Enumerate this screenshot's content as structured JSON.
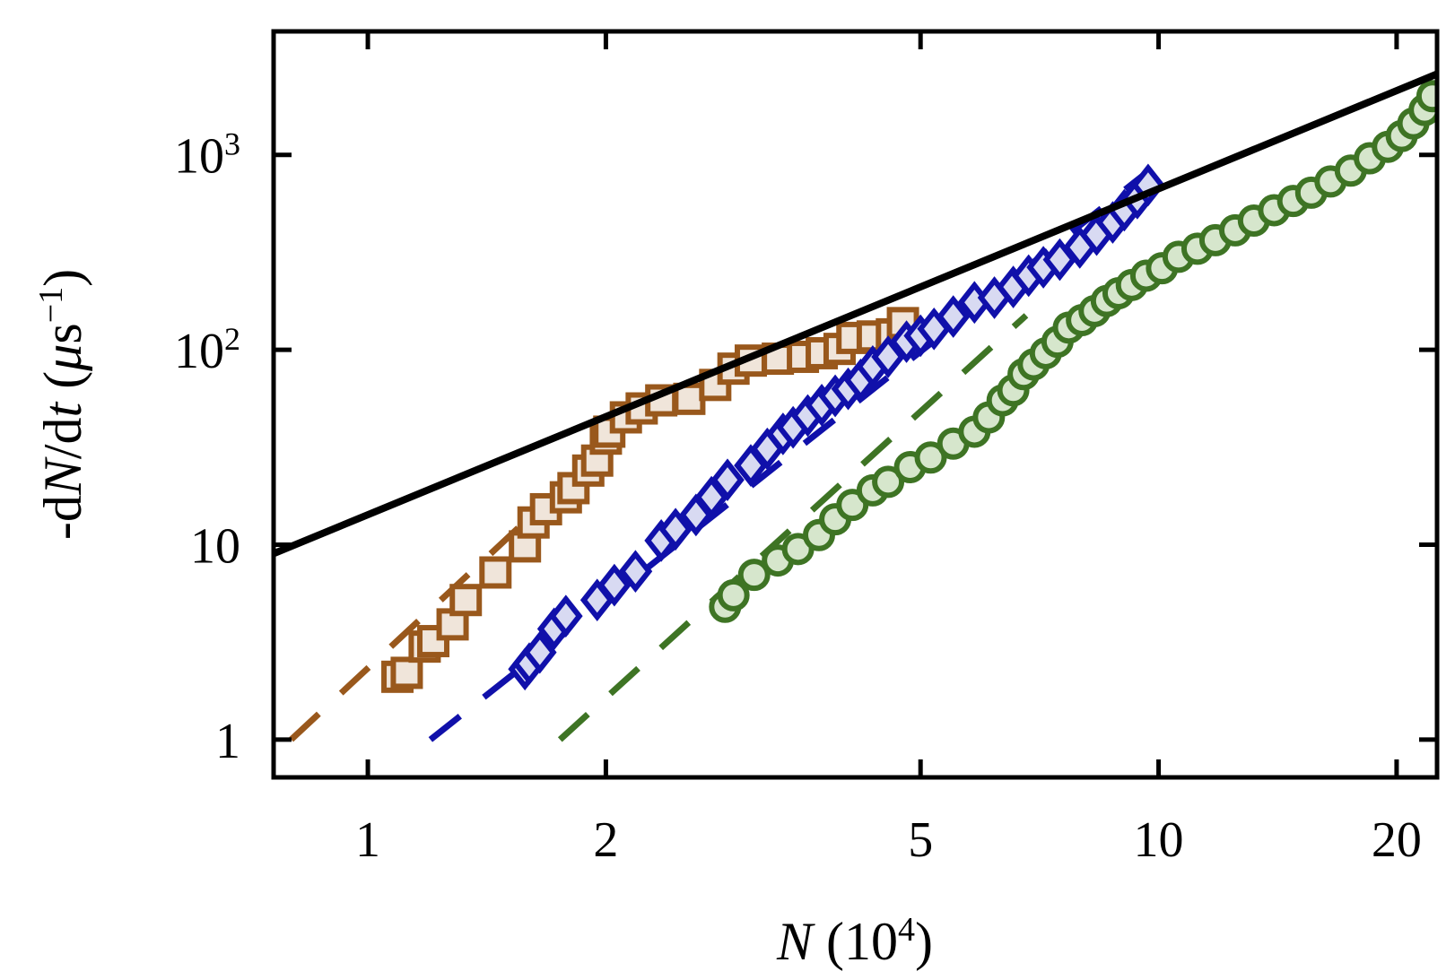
{
  "chart_data": {
    "type": "scatter",
    "xscale": "log",
    "yscale": "log",
    "xlim": [
      0.76,
      22.5
    ],
    "ylim": [
      0.64,
      4300
    ],
    "grid": false,
    "xlabel": {
      "main": "N",
      "rest": "(10",
      "sup": "4",
      "close": ")"
    },
    "ylabel": {
      "prefix": "-d",
      "var1": "N",
      "mid": "/d",
      "var2": "t",
      "space": " (",
      "mu": "μ",
      "unit": "s",
      "sup": "−1",
      "close": ")"
    },
    "xticks": [
      {
        "value": 1,
        "label": "1"
      },
      {
        "value": 2,
        "label": "2"
      },
      {
        "value": 5,
        "label": "5"
      },
      {
        "value": 10,
        "label": "10"
      },
      {
        "value": 20,
        "label": "20"
      }
    ],
    "yticks": [
      {
        "value": 1,
        "label": "1",
        "sup": ""
      },
      {
        "value": 10,
        "label": "10",
        "sup": ""
      },
      {
        "value": 100,
        "label": "10",
        "sup": "2"
      },
      {
        "value": 1000,
        "label": "10",
        "sup": "3"
      }
    ],
    "series": [
      {
        "marker": "square",
        "stroke": "#99581c",
        "fill": "#f0e5da",
        "points": [
          [
            1.09,
            2.1
          ],
          [
            1.12,
            2.2
          ],
          [
            1.18,
            3.0
          ],
          [
            1.21,
            3.2
          ],
          [
            1.28,
            3.9
          ],
          [
            1.33,
            5.2
          ],
          [
            1.45,
            7.2
          ],
          [
            1.58,
            9.8
          ],
          [
            1.62,
            13.0
          ],
          [
            1.68,
            15.2
          ],
          [
            1.78,
            17.5
          ],
          [
            1.82,
            19.5
          ],
          [
            1.9,
            24.0
          ],
          [
            1.95,
            27.0
          ],
          [
            2.0,
            35.0
          ],
          [
            2.02,
            38.0
          ],
          [
            2.12,
            45.0
          ],
          [
            2.22,
            50.0
          ],
          [
            2.35,
            55.0
          ],
          [
            2.55,
            56.0
          ],
          [
            2.75,
            66.0
          ],
          [
            2.9,
            80.0
          ],
          [
            3.05,
            88.0
          ],
          [
            3.3,
            90.0
          ],
          [
            3.55,
            92.0
          ],
          [
            3.75,
            96.0
          ],
          [
            3.95,
            101.0
          ],
          [
            4.1,
            115.0
          ],
          [
            4.35,
            117.0
          ],
          [
            4.6,
            120.0
          ],
          [
            4.75,
            137.0
          ]
        ],
        "fit": [
          [
            0.8,
            1.0
          ],
          [
            2.0,
            32.0
          ]
        ]
      },
      {
        "marker": "diamond",
        "stroke": "#1010aa",
        "fill": "#d8daf2",
        "points": [
          [
            1.58,
            2.3
          ],
          [
            1.6,
            2.45
          ],
          [
            1.65,
            2.8
          ],
          [
            1.72,
            3.7
          ],
          [
            1.78,
            4.3
          ],
          [
            1.95,
            5.2
          ],
          [
            2.05,
            6.2
          ],
          [
            2.18,
            7.3
          ],
          [
            2.35,
            10.5
          ],
          [
            2.45,
            12.0
          ],
          [
            2.6,
            14.2
          ],
          [
            2.72,
            17.5
          ],
          [
            2.85,
            21.5
          ],
          [
            3.05,
            25.5
          ],
          [
            3.2,
            31.0
          ],
          [
            3.35,
            37.0
          ],
          [
            3.45,
            40.0
          ],
          [
            3.6,
            46.0
          ],
          [
            3.75,
            52.0
          ],
          [
            3.9,
            58.0
          ],
          [
            4.05,
            63.0
          ],
          [
            4.2,
            70.0
          ],
          [
            4.35,
            82.0
          ],
          [
            4.55,
            92.0
          ],
          [
            4.8,
            110.0
          ],
          [
            5.0,
            118.0
          ],
          [
            5.2,
            128.0
          ],
          [
            5.5,
            148.0
          ],
          [
            5.85,
            175.0
          ],
          [
            6.2,
            185.0
          ],
          [
            6.55,
            210.0
          ],
          [
            6.85,
            240.0
          ],
          [
            7.15,
            265.0
          ],
          [
            7.5,
            290.0
          ],
          [
            7.95,
            335.0
          ],
          [
            8.35,
            390.0
          ],
          [
            8.75,
            450.0
          ],
          [
            9.05,
            520.0
          ],
          [
            9.4,
            600.0
          ],
          [
            9.7,
            700.0
          ]
        ],
        "fit": [
          [
            1.2,
            1.0
          ],
          [
            9.8,
            850.0
          ]
        ]
      },
      {
        "marker": "circle",
        "stroke": "#3e7424",
        "fill": "#d6e6cc",
        "points": [
          [
            2.83,
            4.8
          ],
          [
            2.9,
            5.5
          ],
          [
            3.08,
            7.0
          ],
          [
            3.3,
            8.3
          ],
          [
            3.5,
            9.5
          ],
          [
            3.72,
            11.2
          ],
          [
            3.9,
            13.5
          ],
          [
            4.1,
            16.0
          ],
          [
            4.35,
            19.0
          ],
          [
            4.55,
            21.0
          ],
          [
            4.85,
            25.0
          ],
          [
            5.15,
            28.0
          ],
          [
            5.5,
            33.0
          ],
          [
            5.85,
            38.0
          ],
          [
            6.1,
            45.0
          ],
          [
            6.35,
            55.0
          ],
          [
            6.55,
            62.0
          ],
          [
            6.75,
            75.0
          ],
          [
            6.95,
            84.0
          ],
          [
            7.2,
            96.0
          ],
          [
            7.45,
            110.0
          ],
          [
            7.7,
            130.0
          ],
          [
            8.0,
            142.0
          ],
          [
            8.3,
            158.0
          ],
          [
            8.6,
            178.0
          ],
          [
            8.9,
            195.0
          ],
          [
            9.25,
            215.0
          ],
          [
            9.65,
            240.0
          ],
          [
            10.1,
            262.0
          ],
          [
            10.6,
            300.0
          ],
          [
            11.2,
            330.0
          ],
          [
            11.8,
            365.0
          ],
          [
            12.5,
            410.0
          ],
          [
            13.2,
            460.0
          ],
          [
            14.0,
            520.0
          ],
          [
            14.8,
            580.0
          ],
          [
            15.6,
            640.0
          ],
          [
            16.5,
            730.0
          ],
          [
            17.5,
            830.0
          ],
          [
            18.5,
            960.0
          ],
          [
            19.5,
            1100.0
          ],
          [
            20.3,
            1250.0
          ],
          [
            21.0,
            1450.0
          ],
          [
            21.7,
            1700.0
          ],
          [
            22.2,
            2000.0
          ]
        ],
        "fit": [
          [
            1.75,
            1.0
          ],
          [
            6.8,
            150.0
          ]
        ]
      }
    ],
    "reference_line": {
      "stroke": "#000000",
      "points": [
        [
          0.76,
          9.0
        ],
        [
          22.5,
          2600.0
        ]
      ]
    }
  }
}
